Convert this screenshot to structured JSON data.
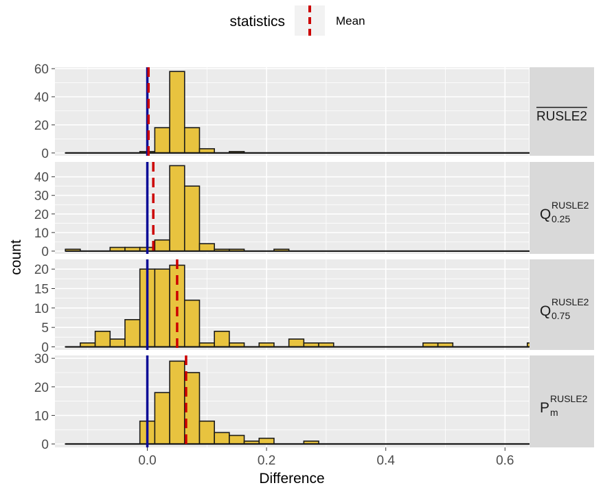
{
  "chart_data": {
    "type": "bar",
    "xlabel": "Difference",
    "ylabel": "count",
    "x_ticks": [
      0.0,
      0.2,
      0.4,
      0.6
    ],
    "x_tick_labels": [
      "0.0",
      "0.2",
      "0.4",
      "0.6"
    ],
    "xlim": [
      -0.155,
      0.64
    ],
    "bin_width": 0.025,
    "bin_start": -0.1375,
    "legend": {
      "title": "statistics",
      "entries": [
        {
          "label": "Mean",
          "color": "#cc0000",
          "style": "dashed"
        }
      ],
      "position": "top"
    },
    "colors": {
      "bar_fill": "#e8c33f",
      "bar_stroke": "#1a1a1a",
      "zero_line": "#0a0a96",
      "mean_line": "#cc0000",
      "panel_bg": "#ebebeb",
      "strip_bg": "#d9d9d9",
      "grid": "#ffffff"
    },
    "panels": [
      {
        "strip": {
          "base": "RUSLE2",
          "overline": true
        },
        "ylim": [
          -2,
          61
        ],
        "y_ticks": [
          0,
          20,
          40,
          60
        ],
        "mean": 0.002,
        "counts": [
          0,
          0,
          0,
          0,
          0,
          1,
          18,
          58,
          18,
          3,
          0,
          1,
          0,
          0,
          0,
          0,
          0,
          0,
          0,
          0,
          0,
          0,
          0,
          0,
          0,
          0,
          0,
          0,
          0,
          0,
          0,
          0
        ]
      },
      {
        "strip": {
          "base": "Q",
          "sup": "RUSLE2",
          "sub": "0.25"
        },
        "ylim": [
          -1.5,
          48
        ],
        "y_ticks": [
          0,
          10,
          20,
          30,
          40
        ],
        "mean": 0.01,
        "counts": [
          1,
          0,
          0,
          2,
          2,
          2,
          6,
          46,
          35,
          4,
          1,
          1,
          0,
          0,
          1,
          0,
          0,
          0,
          0,
          0,
          0,
          0,
          0,
          0,
          0,
          0,
          0,
          0,
          0,
          0,
          0,
          0
        ]
      },
      {
        "strip": {
          "base": "Q",
          "sup": "RUSLE2",
          "sub": "0.75"
        },
        "ylim": [
          -0.8,
          22.5
        ],
        "y_ticks": [
          0,
          5,
          10,
          15,
          20
        ],
        "mean": 0.05,
        "counts": [
          0,
          1,
          4,
          2,
          7,
          20,
          20,
          21,
          12,
          1,
          4,
          1,
          0,
          1,
          0,
          2,
          1,
          1,
          0,
          0,
          0,
          0,
          0,
          0,
          1,
          1,
          0,
          0,
          0,
          0,
          0,
          1
        ]
      },
      {
        "strip": {
          "base": "P",
          "sup": "RUSLE2",
          "sub": "m"
        },
        "ylim": [
          -1.2,
          31
        ],
        "y_ticks": [
          0,
          10,
          20,
          30
        ],
        "mean": 0.065,
        "counts": [
          0,
          0,
          0,
          0,
          0,
          8,
          18,
          29,
          25,
          8,
          4,
          3,
          1,
          2,
          0,
          0,
          1,
          0,
          0,
          0,
          0,
          0,
          0,
          0,
          0,
          0,
          0,
          0,
          0,
          0,
          0,
          0
        ]
      }
    ]
  }
}
